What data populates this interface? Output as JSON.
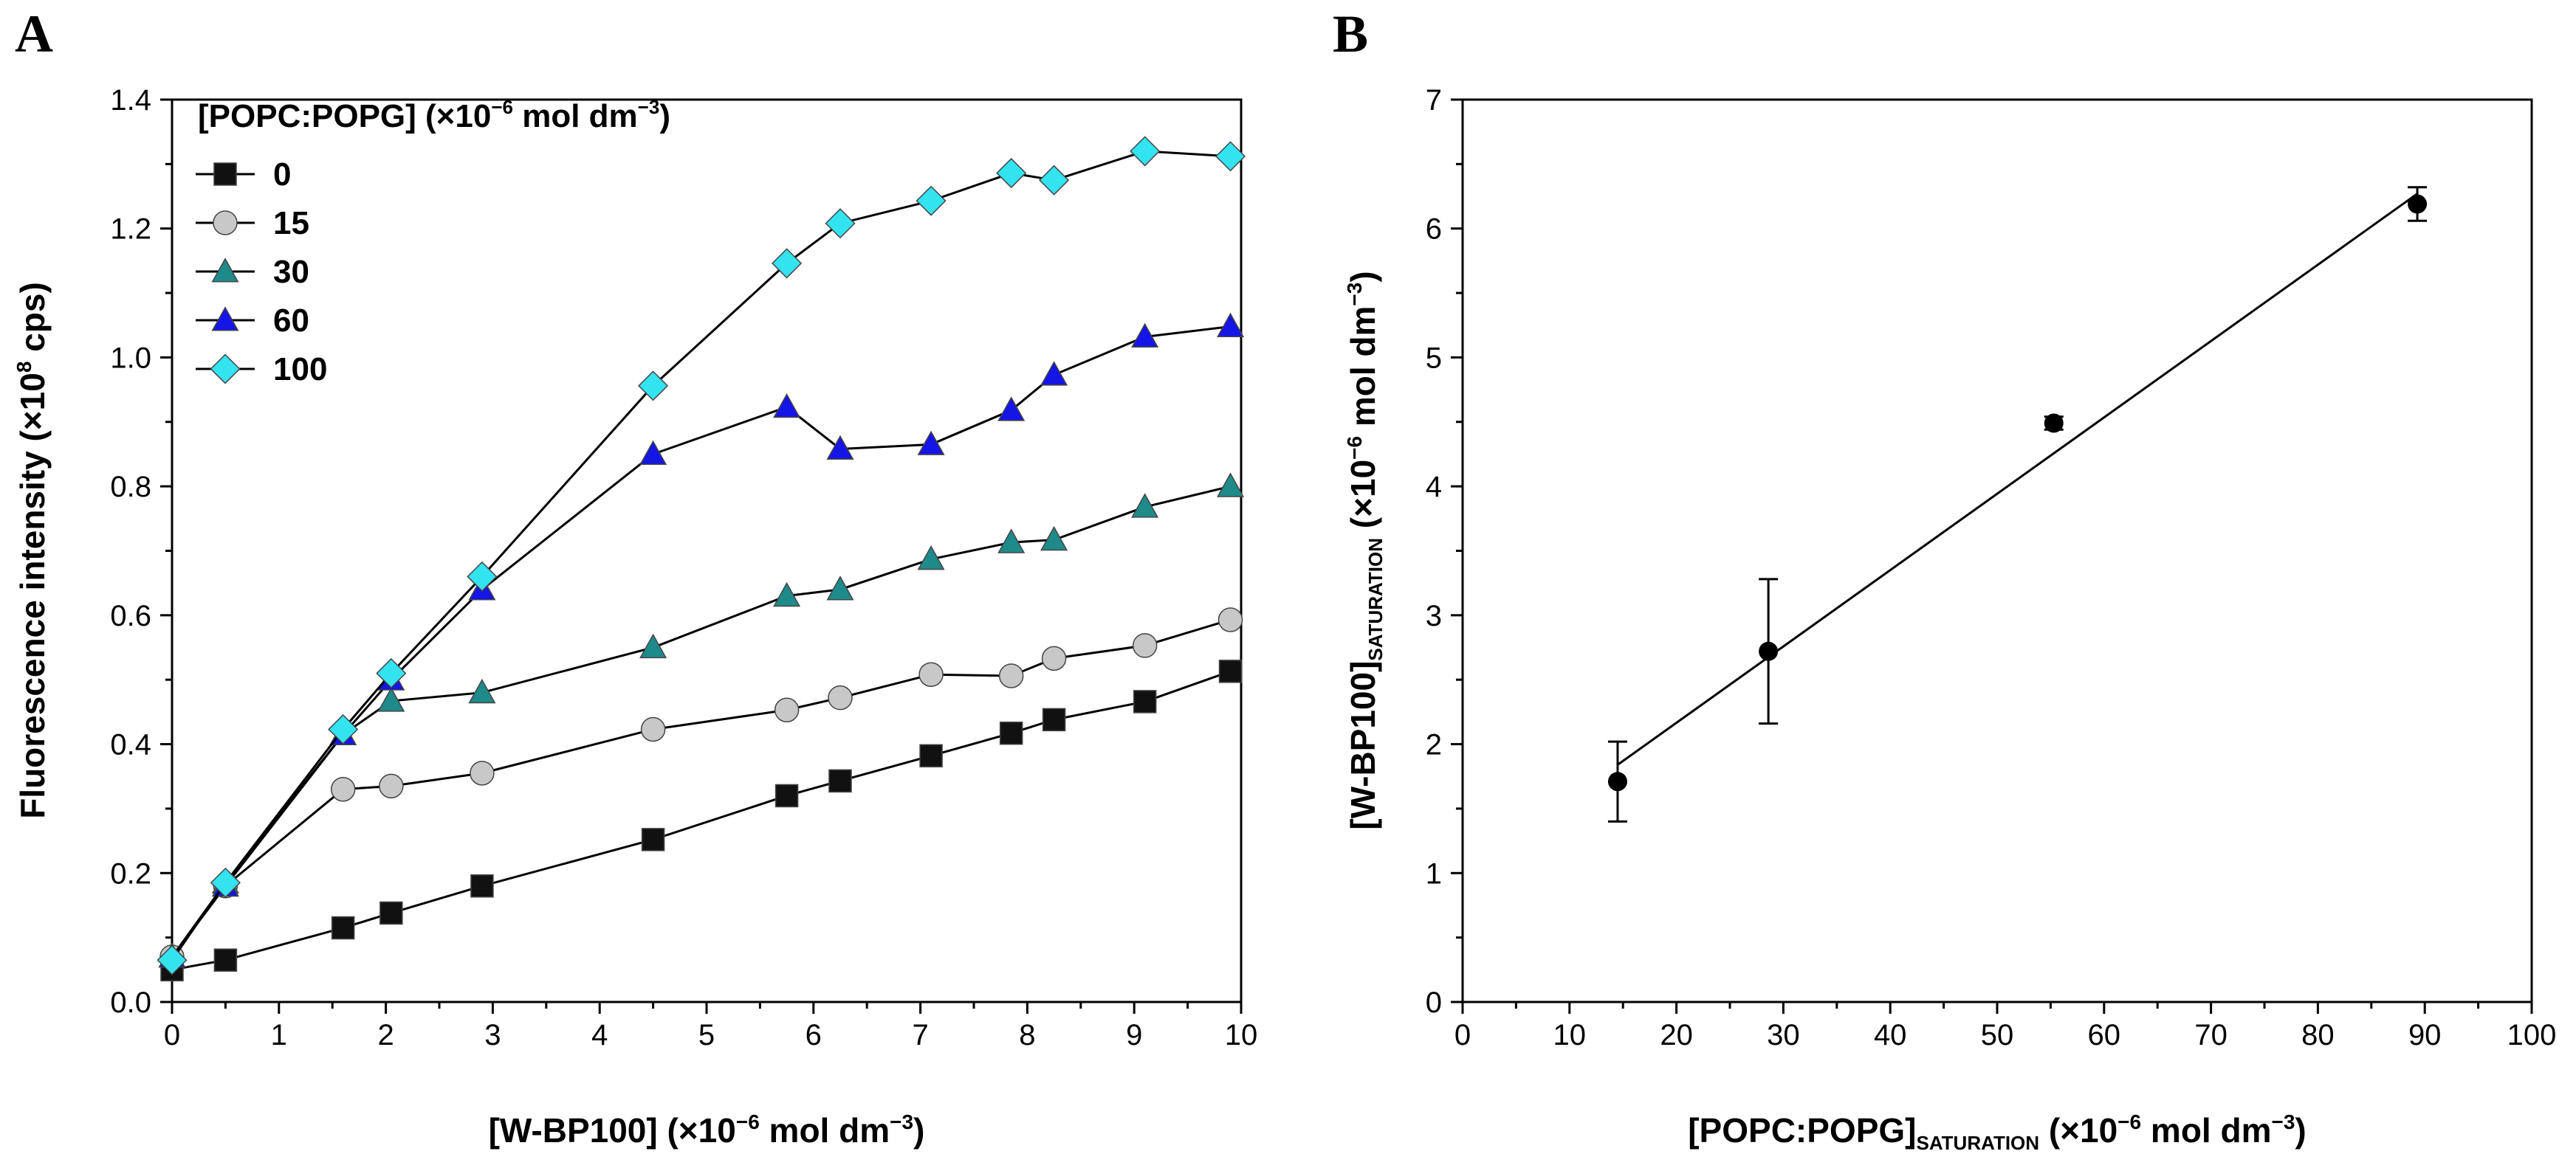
{
  "chart_data": [
    {
      "type": "line",
      "panel_label": "A",
      "xlabel": "[W-BP100] (×10",
      "xlabel_exp": "−6",
      "xlabel_tail": " mol dm",
      "xlabel_tail_exp": "−3",
      "xlabel_end": ")",
      "ylabel": "Fluorescence intensity (×10",
      "ylabel_exp": "8",
      "ylabel_tail": " cps)",
      "xlim": [
        0,
        10
      ],
      "ylim": [
        0,
        1.4
      ],
      "xticks": [
        "0",
        "1",
        "2",
        "3",
        "4",
        "5",
        "6",
        "7",
        "8",
        "9",
        "10"
      ],
      "yticks": [
        "0.0",
        "0.2",
        "0.4",
        "0.6",
        "0.8",
        "1.0",
        "1.2",
        "1.4"
      ],
      "legend_title": "[POPC:POPG] (×10",
      "legend_title_exp": "−6",
      "legend_title_tail": " mol dm",
      "legend_title_tail_exp": "−3",
      "legend_title_end": ")",
      "legend_position": "top-left",
      "series": [
        {
          "name": "0",
          "marker": "square",
          "color": "#111111",
          "x": [
            0.0,
            0.5,
            1.6,
            2.05,
            2.9,
            4.5,
            5.75,
            6.25,
            7.1,
            7.85,
            8.25,
            9.1,
            9.9
          ],
          "y": [
            0.05,
            0.065,
            0.115,
            0.138,
            0.18,
            0.252,
            0.32,
            0.343,
            0.382,
            0.417,
            0.438,
            0.466,
            0.513
          ]
        },
        {
          "name": "15",
          "marker": "circle",
          "color": "#c8c8c8",
          "x": [
            0.0,
            0.5,
            1.6,
            2.05,
            2.9,
            4.5,
            5.75,
            6.25,
            7.1,
            7.85,
            8.25,
            9.1,
            9.9
          ],
          "y": [
            0.07,
            0.18,
            0.33,
            0.335,
            0.355,
            0.423,
            0.453,
            0.472,
            0.508,
            0.506,
            0.533,
            0.553,
            0.593
          ]
        },
        {
          "name": "30",
          "marker": "triangle",
          "color": "#1f8a8a",
          "x": [
            0.0,
            0.5,
            1.6,
            2.05,
            2.9,
            4.5,
            5.75,
            6.25,
            7.1,
            7.85,
            8.25,
            9.1,
            9.9
          ],
          "y": [
            0.07,
            0.185,
            0.415,
            0.467,
            0.48,
            0.55,
            0.63,
            0.64,
            0.687,
            0.713,
            0.717,
            0.768,
            0.8
          ]
        },
        {
          "name": "60",
          "marker": "triangle",
          "color": "#1515e6",
          "x": [
            0.0,
            0.5,
            1.6,
            2.05,
            2.9,
            4.5,
            5.75,
            6.25,
            7.1,
            7.85,
            8.25,
            9.1,
            9.9
          ],
          "y": [
            0.07,
            0.18,
            0.415,
            0.5,
            0.64,
            0.85,
            0.923,
            0.858,
            0.865,
            0.918,
            0.973,
            1.032,
            1.048
          ]
        },
        {
          "name": "100",
          "marker": "diamond",
          "color": "#33e3f0",
          "x": [
            0.0,
            0.5,
            1.6,
            2.05,
            2.9,
            4.5,
            5.75,
            6.25,
            7.1,
            7.85,
            8.25,
            9.1,
            9.9
          ],
          "y": [
            0.065,
            0.185,
            0.423,
            0.51,
            0.66,
            0.956,
            1.146,
            1.208,
            1.243,
            1.286,
            1.275,
            1.32,
            1.312
          ]
        }
      ]
    },
    {
      "type": "scatter",
      "panel_label": "B",
      "xlabel": "[POPC:POPG]",
      "xlabel_sub": "SATURATION",
      "xlabel_tail": " (×10",
      "xlabel_exp": "−6",
      "xlabel_tail2": " mol dm",
      "xlabel_tail2_exp": "−3",
      "xlabel_end": ")",
      "ylabel": "[W-BP100]",
      "ylabel_sub": "SATURATION",
      "ylabel_tail": " (×10",
      "ylabel_exp": "−6",
      "ylabel_tail2": " mol dm",
      "ylabel_tail2_exp": "−3",
      "ylabel_end": ")",
      "xlim": [
        0,
        100
      ],
      "ylim": [
        0,
        7
      ],
      "xticks": [
        "0",
        "10",
        "20",
        "30",
        "40",
        "50",
        "60",
        "70",
        "80",
        "90",
        "100"
      ],
      "yticks": [
        "0",
        "1",
        "2",
        "3",
        "4",
        "5",
        "6",
        "7"
      ],
      "points": [
        {
          "x": 14.5,
          "y": 1.71,
          "err": 0.31
        },
        {
          "x": 28.6,
          "y": 2.72,
          "err": 0.56
        },
        {
          "x": 55.3,
          "y": 4.49,
          "err": 0.05
        },
        {
          "x": 89.3,
          "y": 6.19,
          "err": 0.13
        }
      ],
      "fit_line": {
        "x": [
          14.5,
          89.3
        ],
        "y": [
          1.84,
          6.27
        ]
      }
    }
  ]
}
